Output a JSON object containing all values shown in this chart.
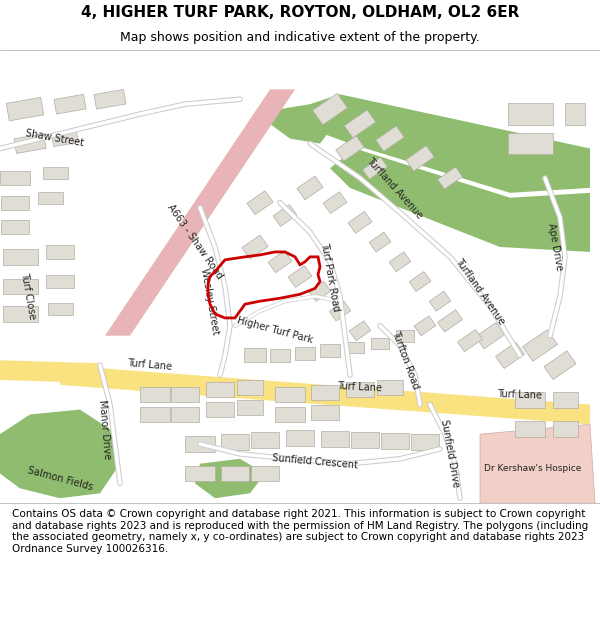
{
  "title": "4, HIGHER TURF PARK, ROYTON, OLDHAM, OL2 6ER",
  "subtitle": "Map shows position and indicative extent of the property.",
  "footer": "Contains OS data © Crown copyright and database right 2021. This information is subject to Crown copyright and database rights 2023 and is reproduced with the permission of HM Land Registry. The polygons (including the associated geometry, namely x, y co-ordinates) are subject to Crown copyright and database rights 2023 Ordnance Survey 100026316.",
  "map_bg": "#f2efe9",
  "road_yellow": "#fae281",
  "road_white": "#ffffff",
  "road_outline": "#cccccc",
  "green_area": "#8fbc6e",
  "green_dark": "#5a8a3c",
  "pink_road": "#e8b4b8",
  "pink_area": "#f2c8c8",
  "building_fill": "#e0ddd5",
  "building_outline": "#ccccaa",
  "plot_outline": "#cc0000",
  "plot_linewidth": 2.0,
  "title_fontsize": 11,
  "subtitle_fontsize": 9,
  "footer_fontsize": 7.5,
  "map_label_fontsize": 7,
  "figsize": [
    6.0,
    6.25
  ],
  "dpi": 100
}
